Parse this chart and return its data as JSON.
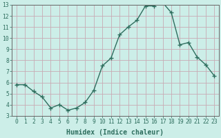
{
  "x": [
    0,
    1,
    2,
    3,
    4,
    5,
    6,
    7,
    8,
    9,
    10,
    11,
    12,
    13,
    14,
    15,
    16,
    17,
    18,
    19,
    20,
    21,
    22,
    23
  ],
  "y": [
    5.8,
    5.8,
    5.2,
    4.7,
    3.7,
    4.0,
    3.5,
    3.7,
    4.2,
    5.3,
    7.5,
    8.2,
    10.3,
    11.0,
    11.6,
    12.9,
    12.9,
    13.2,
    12.3,
    9.4,
    9.6,
    8.3,
    7.6,
    6.6
  ],
  "line_color": "#2e6e5e",
  "marker": "+",
  "marker_size": 4,
  "bg_color": "#cceee8",
  "grid_color": "#c8aab4",
  "xlabel": "Humidex (Indice chaleur)",
  "ylim": [
    3,
    13
  ],
  "xlim": [
    -0.5,
    23.5
  ],
  "yticks": [
    3,
    4,
    5,
    6,
    7,
    8,
    9,
    10,
    11,
    12,
    13
  ],
  "xticks": [
    0,
    1,
    2,
    3,
    4,
    5,
    6,
    7,
    8,
    9,
    10,
    11,
    12,
    13,
    14,
    15,
    16,
    17,
    18,
    19,
    20,
    21,
    22,
    23
  ],
  "tick_color": "#2e6e5e",
  "spine_color": "#666666",
  "label_fontsize": 7.0,
  "tick_fontsize": 5.8,
  "line_width": 1.0
}
